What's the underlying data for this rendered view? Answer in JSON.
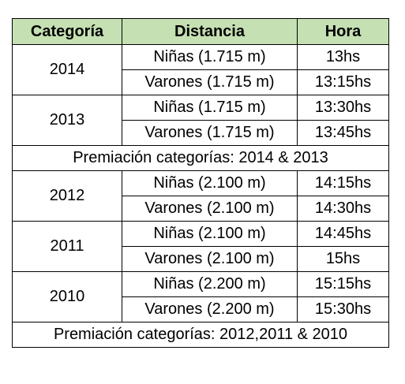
{
  "table": {
    "headers": {
      "category": "Categoría",
      "distance": "Distancia",
      "time": "Hora"
    },
    "rows": [
      {
        "year": "2014",
        "girls": "Niñas (1.715 m)",
        "girls_time": "13hs",
        "boys": "Varones (1.715 m)",
        "boys_time": "13:15hs"
      },
      {
        "year": "2013",
        "girls": "Niñas (1.715 m)",
        "girls_time": "13:30hs",
        "boys": "Varones (1.715 m)",
        "boys_time": "13:45hs"
      },
      {
        "year": "2012",
        "girls": "Niñas (2.100 m)",
        "girls_time": "14:15hs",
        "boys": "Varones (2.100 m)",
        "boys_time": "14:30hs"
      },
      {
        "year": "2011",
        "girls": "Niñas (2.100 m)",
        "girls_time": "14:45hs",
        "boys": "Varones (2.100 m)",
        "boys_time": "15hs"
      },
      {
        "year": "2010",
        "girls": "Niñas (2.200 m)",
        "girls_time": "15:15hs",
        "boys": "Varones (2.200 m)",
        "boys_time": "15:30hs"
      }
    ],
    "awards": [
      "Premiación categorías: 2014 & 2013",
      "Premiación categorías: 2012,2011 & 2010"
    ]
  }
}
